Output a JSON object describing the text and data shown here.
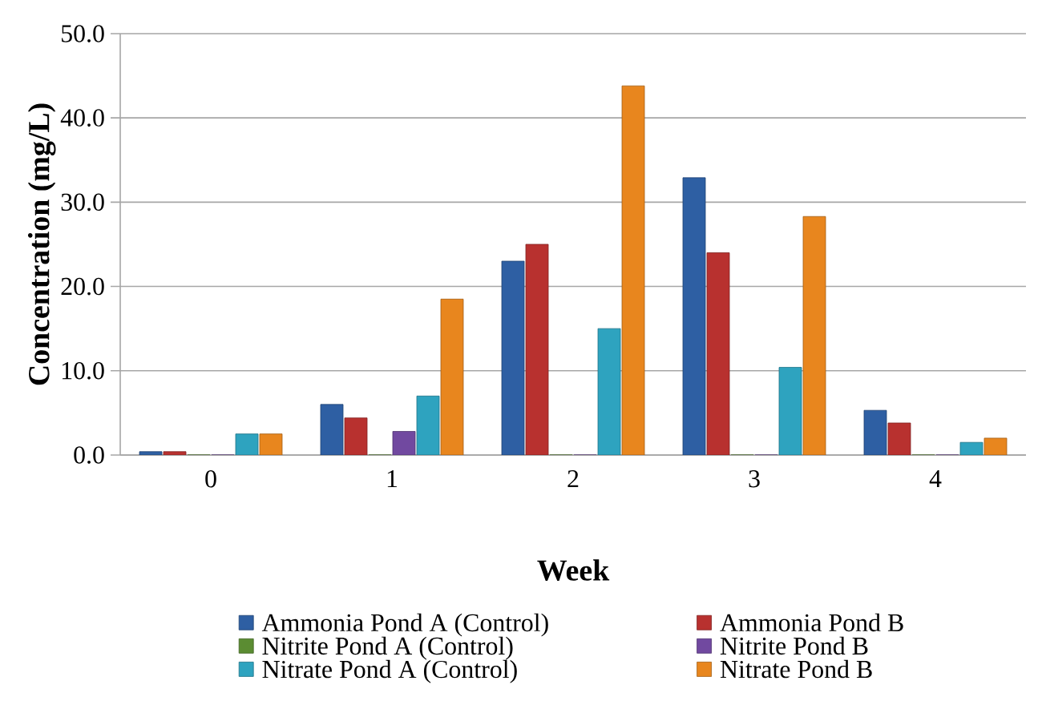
{
  "chart_data": {
    "type": "bar",
    "xlabel": "Week",
    "ylabel": "Concentration (mg/L)",
    "categories": [
      "0",
      "1",
      "2",
      "3",
      "4"
    ],
    "series": [
      {
        "name": "Ammonia Pond A (Control)",
        "color": "#2e5fa3",
        "values": [
          0.4,
          6.0,
          23.0,
          32.9,
          5.3
        ]
      },
      {
        "name": "Ammonia Pond B",
        "color": "#b8312f",
        "values": [
          0.4,
          4.4,
          25.0,
          24.0,
          3.8
        ]
      },
      {
        "name": "Nitrite Pond A (Control)",
        "color": "#5b8c32",
        "values": [
          0,
          0,
          0,
          0,
          0
        ]
      },
      {
        "name": "Nitrite Pond B",
        "color": "#7149a0",
        "values": [
          0,
          2.8,
          0,
          0,
          0
        ]
      },
      {
        "name": "Nitrate Pond A (Control)",
        "color": "#2ea3bf",
        "values": [
          2.5,
          7.0,
          15.0,
          10.4,
          1.5
        ]
      },
      {
        "name": "Nitrate Pond B",
        "color": "#e8861e",
        "values": [
          2.5,
          18.5,
          43.8,
          28.3,
          2.0
        ]
      }
    ],
    "ylim": [
      0,
      50
    ],
    "yticks": [
      {
        "value": 0,
        "label": "0.0"
      },
      {
        "value": 10,
        "label": "10.0"
      },
      {
        "value": 20,
        "label": "20.0"
      },
      {
        "value": 30,
        "label": "30.0"
      },
      {
        "value": 40,
        "label": "40.0"
      },
      {
        "value": 50,
        "label": "50.0"
      }
    ],
    "grid": "y",
    "legend": "bottom"
  }
}
